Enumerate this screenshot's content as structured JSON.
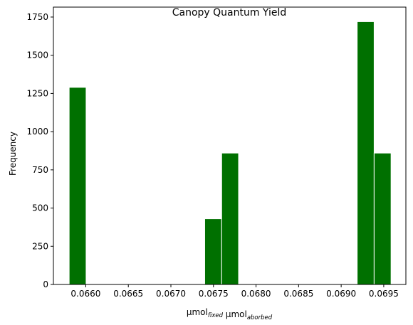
{
  "chart_data": {
    "type": "bar",
    "title": "Canopy Quantum Yield",
    "ylabel": "Frequency",
    "xlabel": {
      "parts": [
        {
          "text": "μmol",
          "sub": "fixed"
        },
        {
          "text": " μmol",
          "sub": "aborbed"
        }
      ]
    },
    "xlim": [
      0.06562,
      0.06976
    ],
    "ylim": [
      0,
      1815
    ],
    "xticks": [
      "0.0660",
      "0.0665",
      "0.0670",
      "0.0675",
      "0.0680",
      "0.0685",
      "0.0690",
      "0.0695"
    ],
    "xtick_values": [
      0.066,
      0.0665,
      0.067,
      0.0675,
      0.068,
      0.0685,
      0.069,
      0.0695
    ],
    "yticks": [
      "0",
      "250",
      "500",
      "750",
      "1000",
      "1250",
      "1500",
      "1750"
    ],
    "ytick_values": [
      0,
      250,
      500,
      750,
      1000,
      1250,
      1500,
      1750
    ],
    "bin_edges": [
      0.065805,
      0.066004,
      0.066203,
      0.066402,
      0.066601,
      0.0668,
      0.066999,
      0.067198,
      0.067397,
      0.067596,
      0.067795,
      0.067994,
      0.068193,
      0.068392,
      0.068591,
      0.06879,
      0.068989,
      0.069188,
      0.069387,
      0.069586
    ],
    "values": [
      1290,
      0,
      0,
      0,
      0,
      0,
      0,
      0,
      430,
      860,
      0,
      0,
      0,
      0,
      0,
      0,
      0,
      1720,
      860
    ],
    "bar_color": "#007000",
    "edge_color": "#ffffff",
    "grid": false,
    "legend": null
  }
}
